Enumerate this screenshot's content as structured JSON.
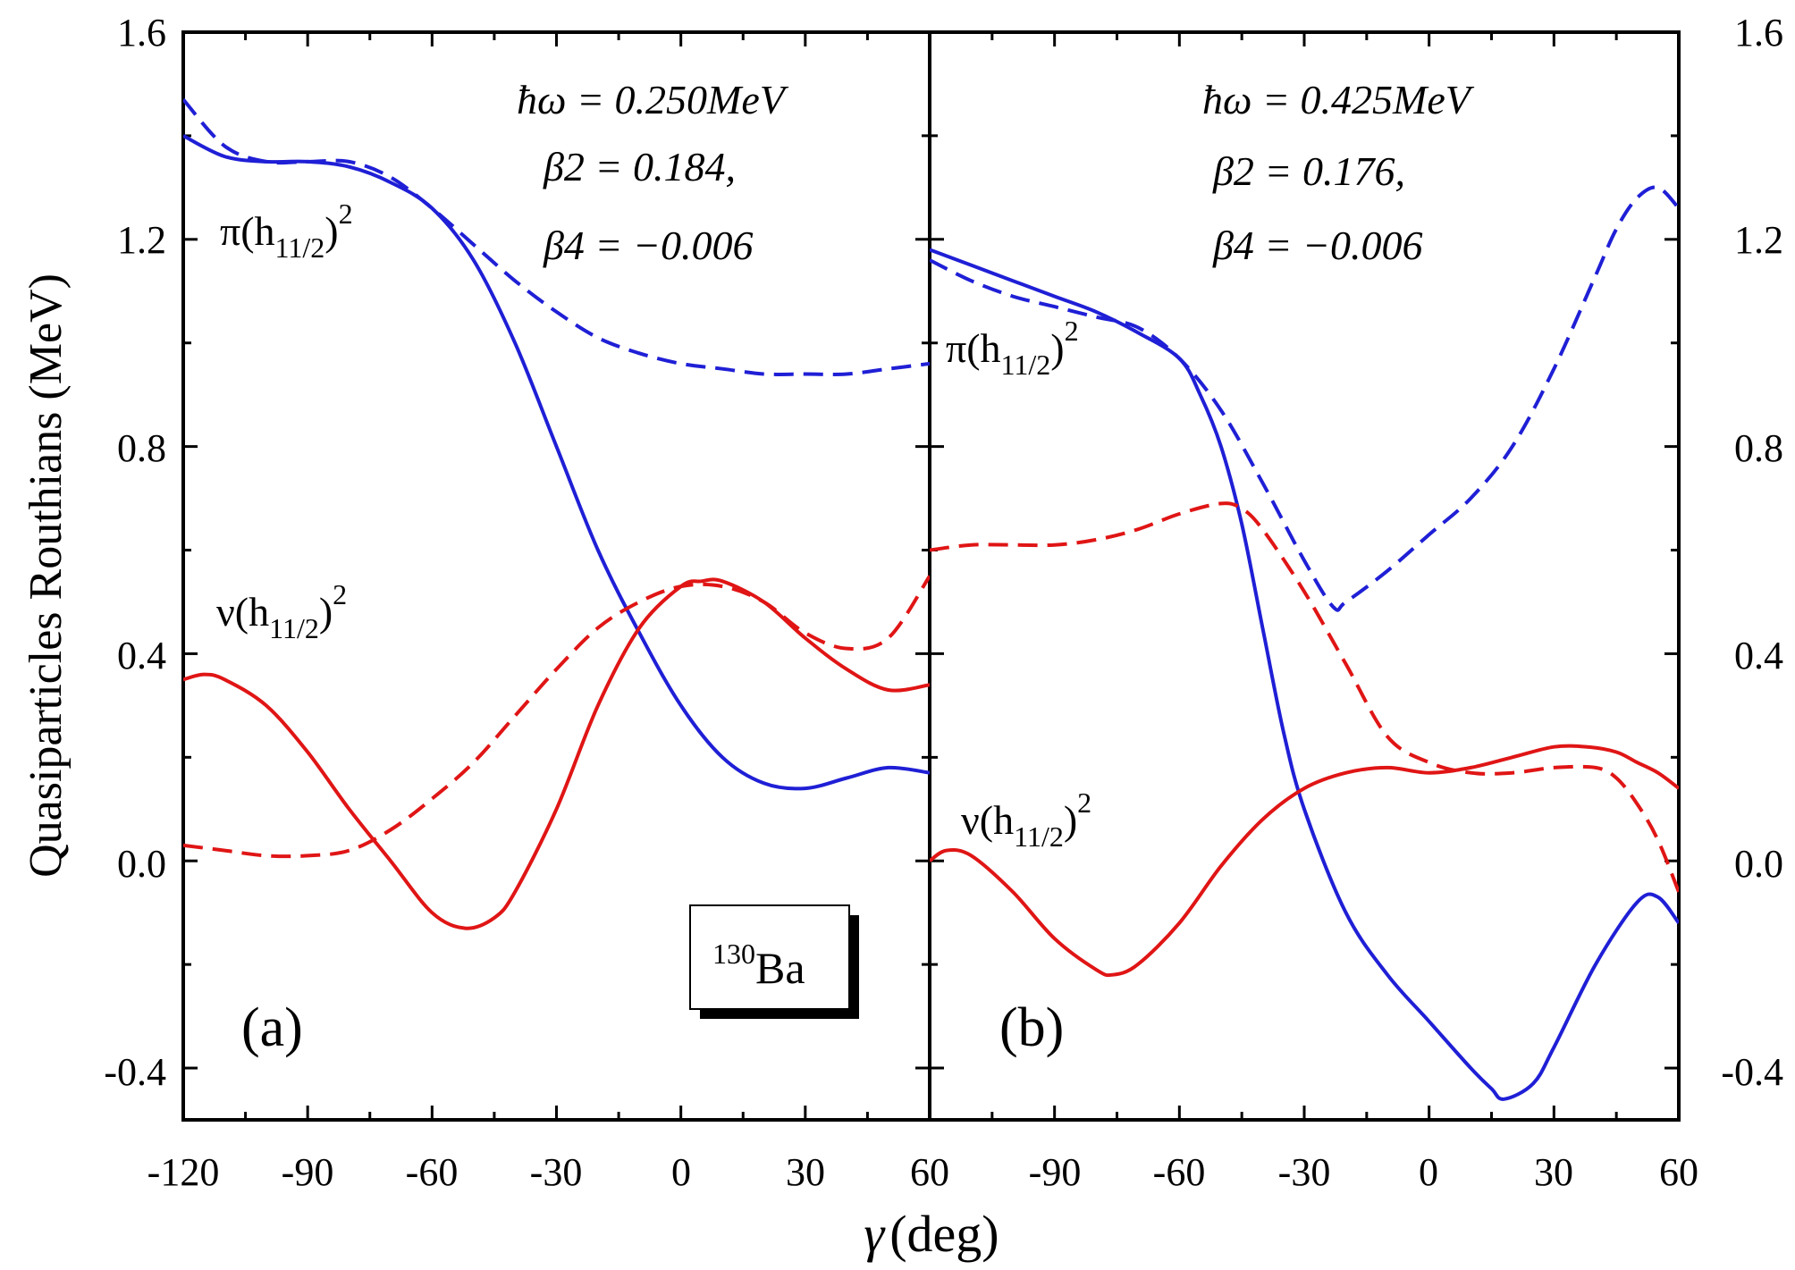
{
  "colors": {
    "proton": "#1f1fd6",
    "neutron": "#e01515",
    "axis": "#000000"
  },
  "axes": {
    "ylabel": "Quasiparticles Routhians (MeV)",
    "xlabel_symbol": "γ",
    "xlabel_unit": "(deg)",
    "yticks": [
      "1.6",
      "1.2",
      "0.8",
      "0.4",
      "0.0",
      "-0.4"
    ],
    "xticks_a": [
      "-120",
      "-90",
      "-60",
      "-30",
      "0",
      "30",
      "60"
    ],
    "xticks_b": [
      "-90",
      "-60",
      "-30",
      "0",
      "30",
      "60"
    ]
  },
  "chart_data": [
    {
      "type": "line",
      "panel": "(a)",
      "nucleus": "130Ba",
      "annotations": {
        "hw": "ħω = 0.250MeV",
        "beta2": "β2 = 0.184,",
        "beta4": "β4 = −0.006"
      },
      "xlim": [
        -120,
        60
      ],
      "ylim": [
        -0.5,
        1.6
      ],
      "curve_labels": [
        "π(h11/2)2",
        "ν(h11/2)2"
      ],
      "series": [
        {
          "color": "#1f1fd6",
          "style": "solid",
          "x": [
            -120,
            -110,
            -100,
            -90,
            -80,
            -70,
            -60,
            -50,
            -40,
            -30,
            -20,
            -10,
            0,
            10,
            20,
            30,
            40,
            50,
            60
          ],
          "y": [
            1.4,
            1.36,
            1.35,
            1.35,
            1.34,
            1.31,
            1.26,
            1.16,
            1.0,
            0.8,
            0.6,
            0.44,
            0.3,
            0.2,
            0.15,
            0.14,
            0.16,
            0.18,
            0.17
          ]
        },
        {
          "color": "#1f1fd6",
          "style": "dashed",
          "x": [
            -120,
            -110,
            -100,
            -90,
            -80,
            -70,
            -60,
            -50,
            -40,
            -30,
            -20,
            -10,
            0,
            10,
            20,
            30,
            40,
            50,
            60
          ],
          "y": [
            1.47,
            1.38,
            1.35,
            1.35,
            1.35,
            1.32,
            1.26,
            1.19,
            1.12,
            1.06,
            1.01,
            0.98,
            0.96,
            0.95,
            0.94,
            0.94,
            0.94,
            0.95,
            0.96
          ]
        },
        {
          "color": "#e01515",
          "style": "solid",
          "x": [
            -120,
            -115,
            -110,
            -100,
            -90,
            -80,
            -70,
            -60,
            -52,
            -45,
            -40,
            -30,
            -20,
            -10,
            0,
            5,
            10,
            20,
            30,
            40,
            50,
            60
          ],
          "y": [
            0.35,
            0.36,
            0.35,
            0.3,
            0.21,
            0.1,
            0.0,
            -0.1,
            -0.13,
            -0.11,
            -0.06,
            0.1,
            0.3,
            0.45,
            0.53,
            0.54,
            0.54,
            0.5,
            0.43,
            0.37,
            0.33,
            0.34
          ]
        },
        {
          "color": "#e01515",
          "style": "dashed",
          "x": [
            -120,
            -110,
            -100,
            -90,
            -80,
            -70,
            -60,
            -50,
            -40,
            -30,
            -20,
            -10,
            0,
            10,
            20,
            30,
            40,
            50,
            60
          ],
          "y": [
            0.03,
            0.02,
            0.01,
            0.01,
            0.02,
            0.06,
            0.12,
            0.19,
            0.28,
            0.37,
            0.45,
            0.5,
            0.53,
            0.53,
            0.5,
            0.44,
            0.41,
            0.43,
            0.55
          ]
        }
      ]
    },
    {
      "type": "line",
      "panel": "(b)",
      "annotations": {
        "hw": "ħω = 0.425MeV",
        "beta2": "β2 = 0.176,",
        "beta4": "β4 = −0.006"
      },
      "xlim": [
        -120,
        60
      ],
      "ylim": [
        -0.5,
        1.6
      ],
      "curve_labels": [
        "π(h11/2)2",
        "ν(h11/2)2"
      ],
      "series": [
        {
          "color": "#1f1fd6",
          "style": "solid",
          "x": [
            -120,
            -110,
            -100,
            -90,
            -80,
            -70,
            -60,
            -55,
            -50,
            -45,
            -40,
            -35,
            -30,
            -20,
            -10,
            0,
            10,
            15,
            18,
            25,
            30,
            40,
            50,
            55,
            60
          ],
          "y": [
            1.18,
            1.15,
            1.12,
            1.09,
            1.06,
            1.02,
            0.97,
            0.9,
            0.8,
            0.65,
            0.45,
            0.25,
            0.1,
            -0.1,
            -0.22,
            -0.31,
            -0.4,
            -0.44,
            -0.46,
            -0.43,
            -0.36,
            -0.2,
            -0.08,
            -0.07,
            -0.12
          ]
        },
        {
          "color": "#1f1fd6",
          "style": "dashed",
          "x": [
            -120,
            -110,
            -100,
            -90,
            -80,
            -70,
            -60,
            -50,
            -40,
            -30,
            -23,
            -20,
            -10,
            0,
            10,
            20,
            30,
            40,
            45,
            50,
            55,
            60
          ],
          "y": [
            1.16,
            1.12,
            1.09,
            1.07,
            1.05,
            1.03,
            0.97,
            0.87,
            0.73,
            0.58,
            0.49,
            0.5,
            0.56,
            0.63,
            0.7,
            0.8,
            0.95,
            1.13,
            1.22,
            1.28,
            1.3,
            1.26
          ]
        },
        {
          "color": "#e01515",
          "style": "solid",
          "x": [
            -120,
            -116,
            -110,
            -100,
            -90,
            -80,
            -76,
            -70,
            -60,
            -50,
            -40,
            -30,
            -20,
            -10,
            0,
            10,
            20,
            30,
            38,
            45,
            50,
            55,
            60
          ],
          "y": [
            0.0,
            0.02,
            0.01,
            -0.06,
            -0.15,
            -0.21,
            -0.22,
            -0.2,
            -0.12,
            -0.01,
            0.08,
            0.14,
            0.17,
            0.18,
            0.17,
            0.18,
            0.2,
            0.22,
            0.22,
            0.21,
            0.19,
            0.17,
            0.14
          ]
        },
        {
          "color": "#e01515",
          "style": "dashed",
          "x": [
            -120,
            -110,
            -100,
            -90,
            -80,
            -70,
            -60,
            -50,
            -45,
            -40,
            -30,
            -20,
            -10,
            0,
            10,
            20,
            30,
            40,
            45,
            50,
            55,
            60
          ],
          "y": [
            0.6,
            0.61,
            0.61,
            0.61,
            0.62,
            0.64,
            0.67,
            0.69,
            0.68,
            0.64,
            0.52,
            0.38,
            0.24,
            0.19,
            0.17,
            0.17,
            0.18,
            0.18,
            0.16,
            0.11,
            0.04,
            -0.06
          ]
        }
      ]
    }
  ]
}
